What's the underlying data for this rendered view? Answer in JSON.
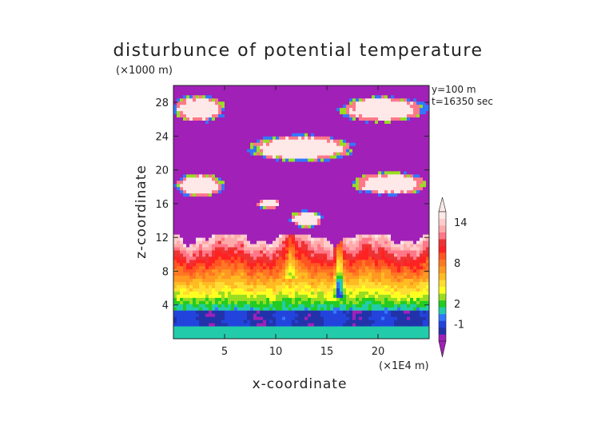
{
  "chart_data": {
    "type": "heatmap",
    "title": "disturbunce of potential temperature",
    "xlabel": "x-coordinate",
    "ylabel": "z-coordinate",
    "x_unit": "(×1E4 m)",
    "y_unit": "(×1000 m)",
    "annotations": [
      "y=100 m",
      "t=16350 sec"
    ],
    "xlim": [
      0,
      25
    ],
    "ylim": [
      0,
      30
    ],
    "x_ticks": [
      5,
      10,
      15,
      20
    ],
    "y_ticks": [
      4,
      8,
      12,
      16,
      20,
      24,
      28
    ],
    "colorbar": {
      "labels": [
        14,
        8,
        2,
        -1
      ],
      "levels": [
        -3,
        -2,
        -1,
        0,
        1,
        2,
        3,
        4,
        5,
        6,
        7,
        8,
        9,
        10,
        11,
        12,
        13,
        14,
        15,
        16
      ],
      "colors": [
        "#a020b8",
        "#2233aa",
        "#2244dd",
        "#3377ff",
        "#22ccaa",
        "#22cc22",
        "#99dd22",
        "#ffff22",
        "#ffdd33",
        "#ffbb22",
        "#ff9922",
        "#ff7722",
        "#ff5522",
        "#ff2222",
        "#ee3333",
        "#ff7788",
        "#ffaaaa",
        "#ffcccc",
        "#ffe8e8"
      ]
    }
  }
}
